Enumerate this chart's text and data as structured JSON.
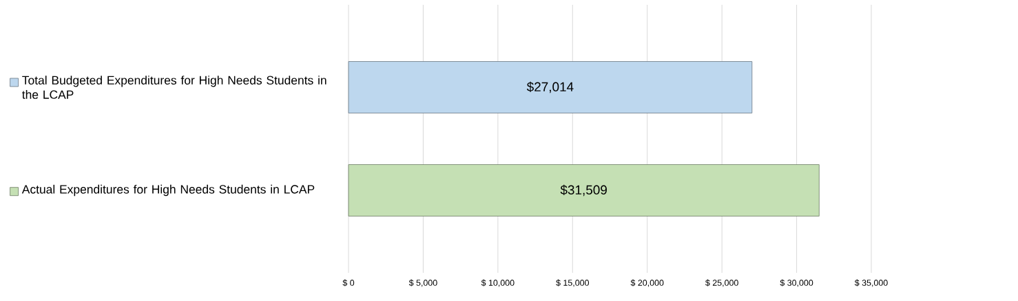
{
  "chart_data": {
    "type": "bar",
    "orientation": "horizontal",
    "categories": [
      null,
      null
    ],
    "series": [
      {
        "name": "Total Budgeted Expenditures for High Needs Students in the LCAP",
        "color": "#bdd7ee",
        "values": [
          27014,
          null
        ],
        "value_labels": [
          "$27,014",
          null
        ]
      },
      {
        "name": "Actual Expenditures for High Needs Students in LCAP",
        "color": "#c5e0b4",
        "values": [
          null,
          31509
        ],
        "value_labels": [
          null,
          "$31,509"
        ]
      }
    ],
    "xlim": [
      0,
      35000
    ],
    "xticks": [
      {
        "value": 0,
        "label": "$ 0"
      },
      {
        "value": 5000,
        "label": "$ 5,000"
      },
      {
        "value": 10000,
        "label": "$ 10,000"
      },
      {
        "value": 15000,
        "label": "$ 15,000"
      },
      {
        "value": 20000,
        "label": "$ 20,000"
      },
      {
        "value": 25000,
        "label": "$ 25,000"
      },
      {
        "value": 30000,
        "label": "$ 30,000"
      },
      {
        "value": 35000,
        "label": "$ 35,000"
      }
    ],
    "grid": "x",
    "legend": "left"
  }
}
